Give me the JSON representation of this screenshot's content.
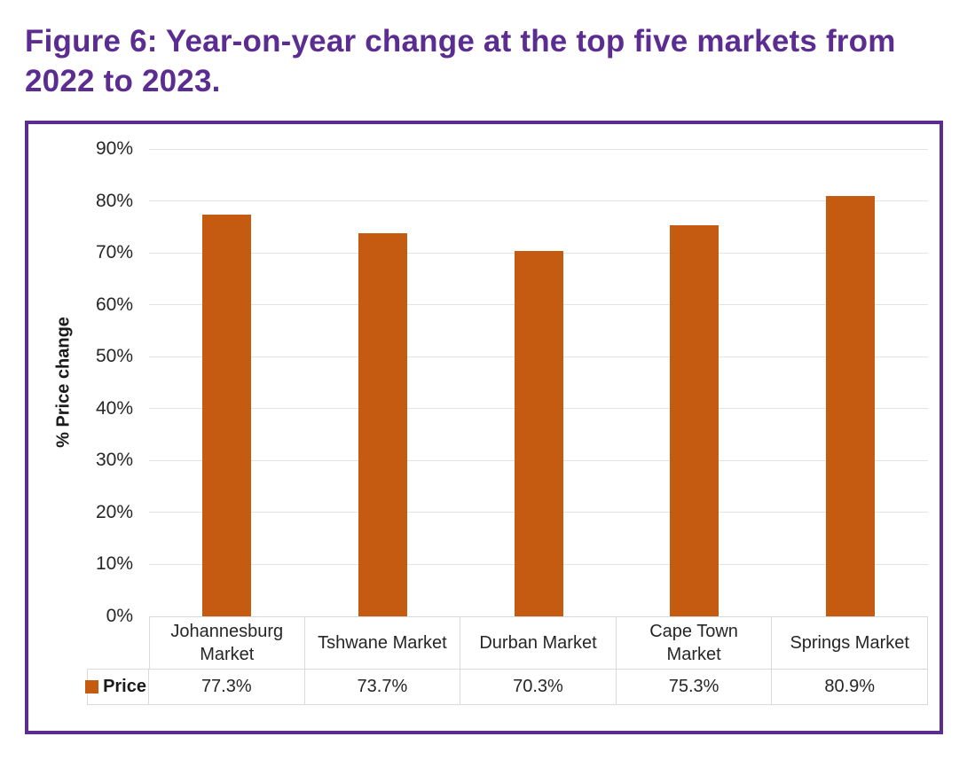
{
  "page": {
    "title": "Figure 6: Year-on-year change at the top five markets from 2022 to 2023."
  },
  "chart_data": {
    "type": "bar",
    "categories": [
      "Johannesburg Market",
      "Tshwane Market",
      "Durban Market",
      "Cape Town Market",
      "Springs Market"
    ],
    "series": [
      {
        "name": "Price",
        "values": [
          77.3,
          73.7,
          70.3,
          75.3,
          80.9
        ]
      }
    ],
    "value_labels": [
      "77.3%",
      "73.7%",
      "70.3%",
      "75.3%",
      "80.9%"
    ],
    "ylabel": "% Price change",
    "ylim": [
      0,
      90
    ],
    "ytick_step": 10,
    "ytick_labels": [
      "0%",
      "10%",
      "20%",
      "30%",
      "40%",
      "50%",
      "60%",
      "70%",
      "80%",
      "90%"
    ],
    "grid": true,
    "legend_position": "bottom-table",
    "colors": {
      "bar": "#C55A11",
      "gridline": "#E2E2E2",
      "table_border": "#D9D9D9",
      "frame_border": "#5C2D91",
      "title": "#5C2D91",
      "text": "#262626"
    }
  }
}
